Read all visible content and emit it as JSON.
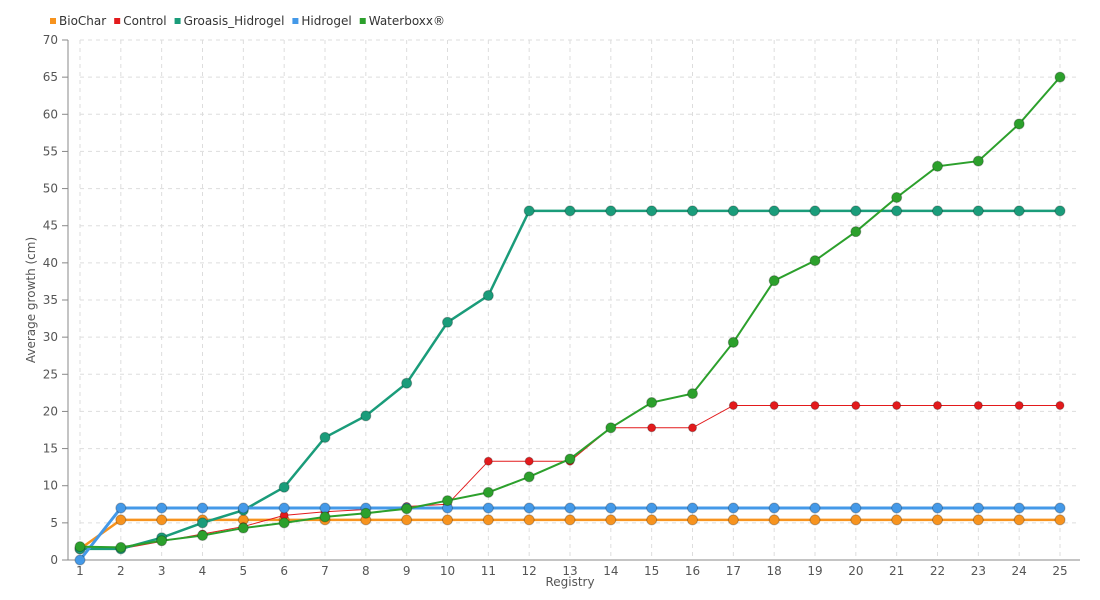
{
  "chart_data": {
    "type": "line",
    "title": "",
    "xlabel": "Registry",
    "ylabel": "Average growth (cm)",
    "ylim": [
      0,
      70
    ],
    "yticks": [
      0,
      5,
      10,
      15,
      20,
      25,
      30,
      35,
      40,
      45,
      50,
      55,
      60,
      65,
      70
    ],
    "grid": true,
    "legend_position": "top-left",
    "categories": [
      "1",
      "2",
      "3",
      "4",
      "5",
      "6",
      "7",
      "8",
      "9",
      "10",
      "11",
      "12",
      "13",
      "14",
      "15",
      "16",
      "17",
      "18",
      "19",
      "20",
      "21",
      "22",
      "23",
      "24",
      "25"
    ],
    "series": [
      {
        "name": "BioChar",
        "color": "#f7931e",
        "width": 2.5,
        "values": [
          1.5,
          5.4,
          5.4,
          5.4,
          5.4,
          5.4,
          5.4,
          5.4,
          5.4,
          5.4,
          5.4,
          5.4,
          5.4,
          5.4,
          5.4,
          5.4,
          5.4,
          5.4,
          5.4,
          5.4,
          5.4,
          5.4,
          5.4,
          5.4,
          5.4
        ]
      },
      {
        "name": "Control",
        "color": "#e31a1c",
        "width": 1,
        "values": [
          1.5,
          1.5,
          2.5,
          3.5,
          4.5,
          6.0,
          6.5,
          6.8,
          7.2,
          7.5,
          13.3,
          13.3,
          13.3,
          17.8,
          17.8,
          17.8,
          20.8,
          20.8,
          20.8,
          20.8,
          20.8,
          20.8,
          20.8,
          20.8,
          20.8
        ]
      },
      {
        "name": "Groasis_Hidrogel",
        "color": "#1a9c7a",
        "width": 2.5,
        "values": [
          1.5,
          1.5,
          3.0,
          5.0,
          6.7,
          9.8,
          16.5,
          19.4,
          23.8,
          32.0,
          35.6,
          47.0,
          47.0,
          47.0,
          47.0,
          47.0,
          47.0,
          47.0,
          47.0,
          47.0,
          47.0,
          47.0,
          47.0,
          47.0,
          47.0
        ]
      },
      {
        "name": "Hidrogel",
        "color": "#4499e8",
        "width": 3,
        "values": [
          0,
          7.0,
          7.0,
          7.0,
          7.0,
          7.0,
          7.0,
          7.0,
          7.0,
          7.0,
          7.0,
          7.0,
          7.0,
          7.0,
          7.0,
          7.0,
          7.0,
          7.0,
          7.0,
          7.0,
          7.0,
          7.0,
          7.0,
          7.0,
          7.0
        ]
      },
      {
        "name": "Waterboxx®",
        "color": "#2ca02c",
        "width": 2,
        "values": [
          1.8,
          1.7,
          2.6,
          3.3,
          4.3,
          5.0,
          5.8,
          6.3,
          6.9,
          8.0,
          9.1,
          11.2,
          13.6,
          17.8,
          21.2,
          22.4,
          29.3,
          37.6,
          40.3,
          44.2,
          48.8,
          53.0,
          53.7,
          58.7,
          65.0
        ]
      }
    ]
  }
}
